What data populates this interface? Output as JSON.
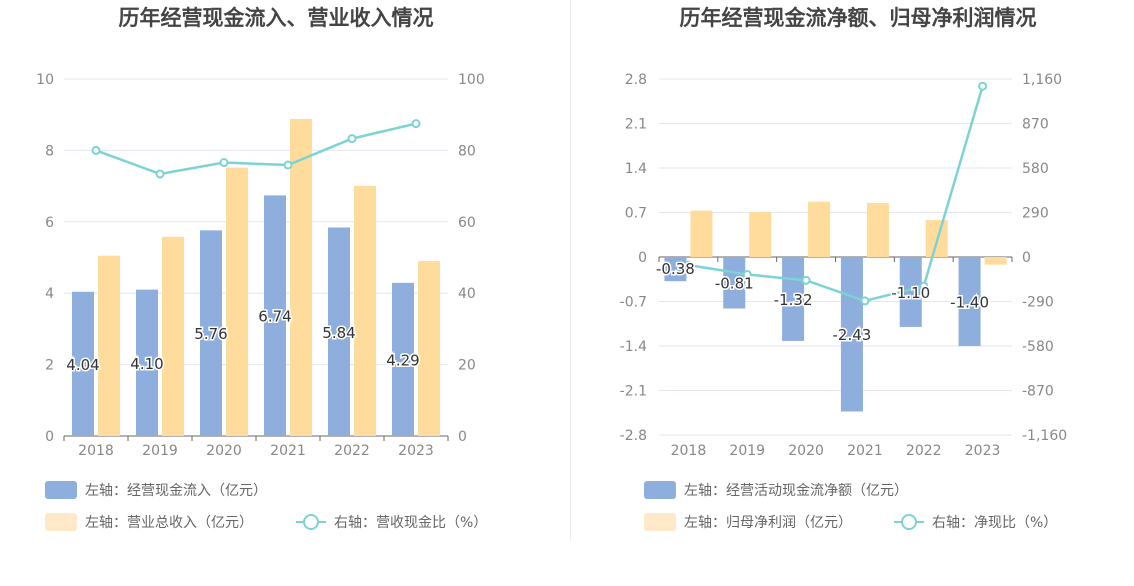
{
  "chart_data": [
    {
      "type": "bar",
      "title": "历年经营现金流入、营业收入情况",
      "categories": [
        "2018",
        "2019",
        "2020",
        "2021",
        "2022",
        "2023"
      ],
      "y_left": {
        "ticks": [
          "0",
          "2",
          "4",
          "6",
          "8",
          "10"
        ],
        "range": [
          0,
          10
        ]
      },
      "y_right": {
        "ticks": [
          "0",
          "20",
          "40",
          "60",
          "80",
          "100"
        ],
        "range": [
          0,
          100
        ]
      },
      "series": [
        {
          "name": "左轴：经营现金流入（亿元）",
          "kind": "bar",
          "axis": "left",
          "color": "#8eaedd",
          "values": [
            4.04,
            4.1,
            5.76,
            6.74,
            5.84,
            4.29
          ],
          "labels": [
            "4.04",
            "4.10",
            "5.76",
            "6.74",
            "5.84",
            "4.29"
          ]
        },
        {
          "name": "左轴：营业总收入（亿元）",
          "kind": "bar",
          "axis": "left",
          "color": "#ffdb9c",
          "values": [
            5.05,
            5.58,
            7.52,
            8.88,
            7.01,
            4.9
          ]
        },
        {
          "name": "右轴：营收现金比（%）",
          "kind": "line",
          "axis": "right",
          "color": "#7dd3d3",
          "values": [
            80.0,
            73.4,
            76.6,
            75.9,
            83.3,
            87.5
          ]
        }
      ],
      "legend": [
        {
          "label": "左轴：经营现金流入（亿元）",
          "kind": "bar",
          "color": "#8eaedd"
        },
        {
          "label": "左轴：营业总收入（亿元）",
          "kind": "bar",
          "color": "#ffe9c8"
        },
        {
          "label": "右轴：营收现金比（%）",
          "kind": "line",
          "color": "#7dd3d3"
        }
      ],
      "legend_position": "bottom-left"
    },
    {
      "type": "bar",
      "title": "历年经营现金流净额、归母净利润情况",
      "categories": [
        "2018",
        "2019",
        "2020",
        "2021",
        "2022",
        "2023"
      ],
      "y_left": {
        "ticks": [
          "-2.8",
          "-2.1",
          "-1.4",
          "-0.7",
          "0",
          "0.7",
          "1.4",
          "2.1",
          "2.8"
        ],
        "range": [
          -2.8,
          2.8
        ]
      },
      "y_right": {
        "ticks": [
          "-1,160",
          "-870",
          "-580",
          "-290",
          "0",
          "290",
          "580",
          "870",
          "1,160"
        ],
        "range": [
          -1160,
          1160
        ]
      },
      "series": [
        {
          "name": "左轴：经营活动现金流净额（亿元）",
          "kind": "bar",
          "axis": "left",
          "color": "#8eaedd",
          "values": [
            -0.38,
            -0.81,
            -1.32,
            -2.43,
            -1.1,
            -1.4
          ],
          "labels": [
            "-0.38",
            "-0.81",
            "-1.32",
            "-2.43",
            "-1.10",
            "-1.40"
          ]
        },
        {
          "name": "左轴：归母净利润（亿元）",
          "kind": "bar",
          "axis": "left",
          "color": "#ffdb9c",
          "values": [
            0.73,
            0.71,
            0.87,
            0.85,
            0.58,
            -0.12
          ]
        },
        {
          "name": "右轴：净现比（%）",
          "kind": "line",
          "axis": "right",
          "color": "#7dd3d3",
          "values": [
            -52,
            -114,
            -152,
            -286,
            -190,
            1113
          ]
        }
      ],
      "legend": [
        {
          "label": "左轴：经营活动现金流净额（亿元）",
          "kind": "bar",
          "color": "#8eaedd"
        },
        {
          "label": "左轴：归母净利润（亿元）",
          "kind": "bar",
          "color": "#ffe9c8"
        },
        {
          "label": "右轴：净现比（%）",
          "kind": "line",
          "color": "#7dd3d3"
        }
      ],
      "legend_position": "bottom-left"
    }
  ]
}
